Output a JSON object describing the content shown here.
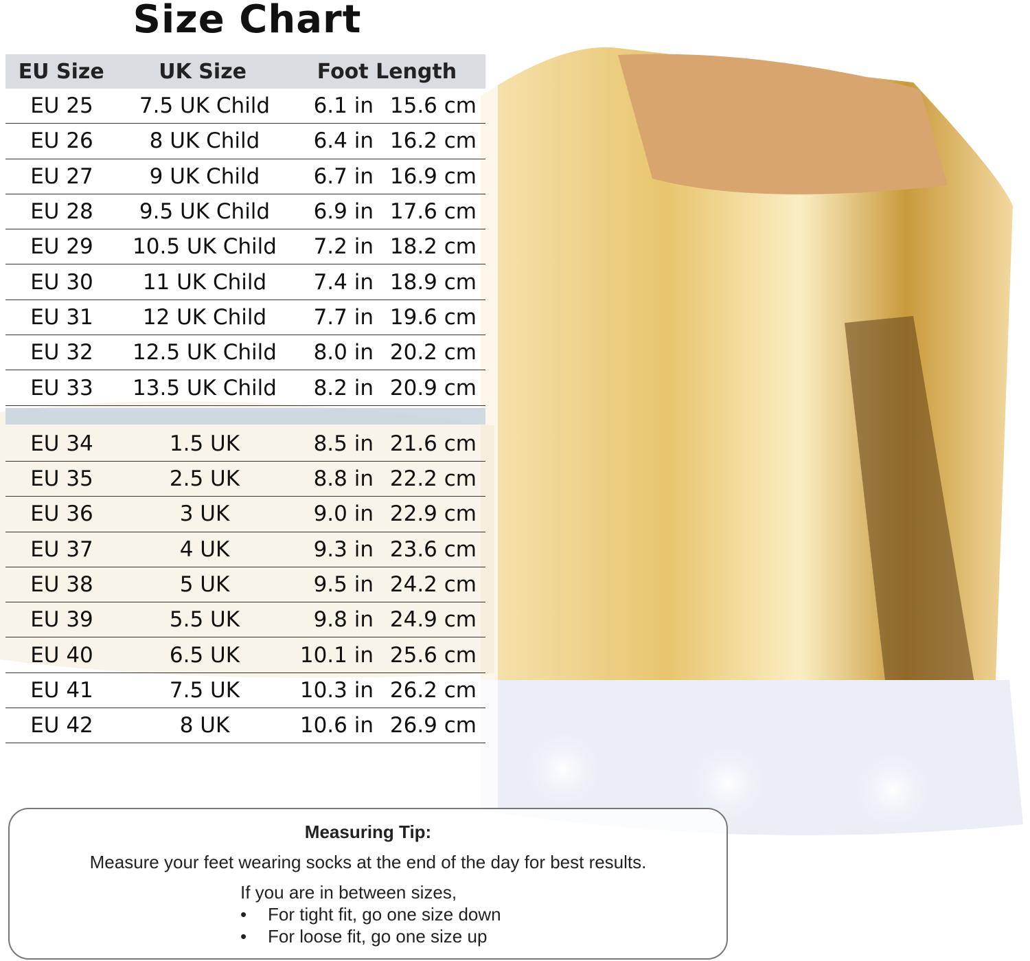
{
  "title": "Size Chart",
  "headers": {
    "eu": "EU Size",
    "uk": "UK Size",
    "foot": "Foot Length"
  },
  "kids_rows": [
    {
      "eu": "EU 25",
      "uk": "7.5 UK Child",
      "in": "6.1 in",
      "cm": "15.6 cm"
    },
    {
      "eu": "EU 26",
      "uk": "8 UK Child",
      "in": "6.4 in",
      "cm": "16.2 cm"
    },
    {
      "eu": "EU 27",
      "uk": "9 UK Child",
      "in": "6.7 in",
      "cm": "16.9 cm"
    },
    {
      "eu": "EU 28",
      "uk": "9.5 UK Child",
      "in": "6.9 in",
      "cm": "17.6 cm"
    },
    {
      "eu": "EU 29",
      "uk": "10.5 UK Child",
      "in": "7.2 in",
      "cm": "18.2 cm"
    },
    {
      "eu": "EU 30",
      "uk": "11 UK Child",
      "in": "7.4 in",
      "cm": "18.9 cm"
    },
    {
      "eu": "EU 31",
      "uk": "12 UK Child",
      "in": "7.7 in",
      "cm": "19.6 cm"
    },
    {
      "eu": "EU 32",
      "uk": "12.5 UK Child",
      "in": "8.0 in",
      "cm": "20.2 cm"
    },
    {
      "eu": "EU 33",
      "uk": "13.5 UK Child",
      "in": "8.2 in",
      "cm": "20.9 cm"
    }
  ],
  "adult_rows": [
    {
      "eu": "EU 34",
      "uk": "1.5 UK",
      "in": "8.5 in",
      "cm": "21.6 cm"
    },
    {
      "eu": "EU 35",
      "uk": "2.5 UK",
      "in": "8.8 in",
      "cm": "22.2 cm"
    },
    {
      "eu": "EU 36",
      "uk": "3 UK",
      "in": "9.0 in",
      "cm": "22.9 cm"
    },
    {
      "eu": "EU 37",
      "uk": "4 UK",
      "in": "9.3 in",
      "cm": "23.6 cm"
    },
    {
      "eu": "EU 38",
      "uk": "5 UK",
      "in": "9.5 in",
      "cm": "24.2 cm"
    },
    {
      "eu": "EU 39",
      "uk": "5.5 UK",
      "in": "9.8 in",
      "cm": "24.9 cm"
    },
    {
      "eu": "EU 40",
      "uk": "6.5 UK",
      "in": "10.1 in",
      "cm": "25.6 cm"
    },
    {
      "eu": "EU 41",
      "uk": "7.5 UK",
      "in": "10.3 in",
      "cm": "26.2 cm"
    },
    {
      "eu": "EU 42",
      "uk": "8 UK",
      "in": "10.6 in",
      "cm": "26.9 cm"
    }
  ],
  "tip": {
    "title": "Measuring Tip:",
    "line": "Measure your feet wearing socks at the end of the day for best results.",
    "sub": "If you are in between sizes,",
    "bullets": [
      "For tight fit, go one size down",
      "For loose fit, go one size up"
    ]
  },
  "colors": {
    "header_bg": "#d9dde2",
    "shoe_gold": "#e8c874"
  }
}
